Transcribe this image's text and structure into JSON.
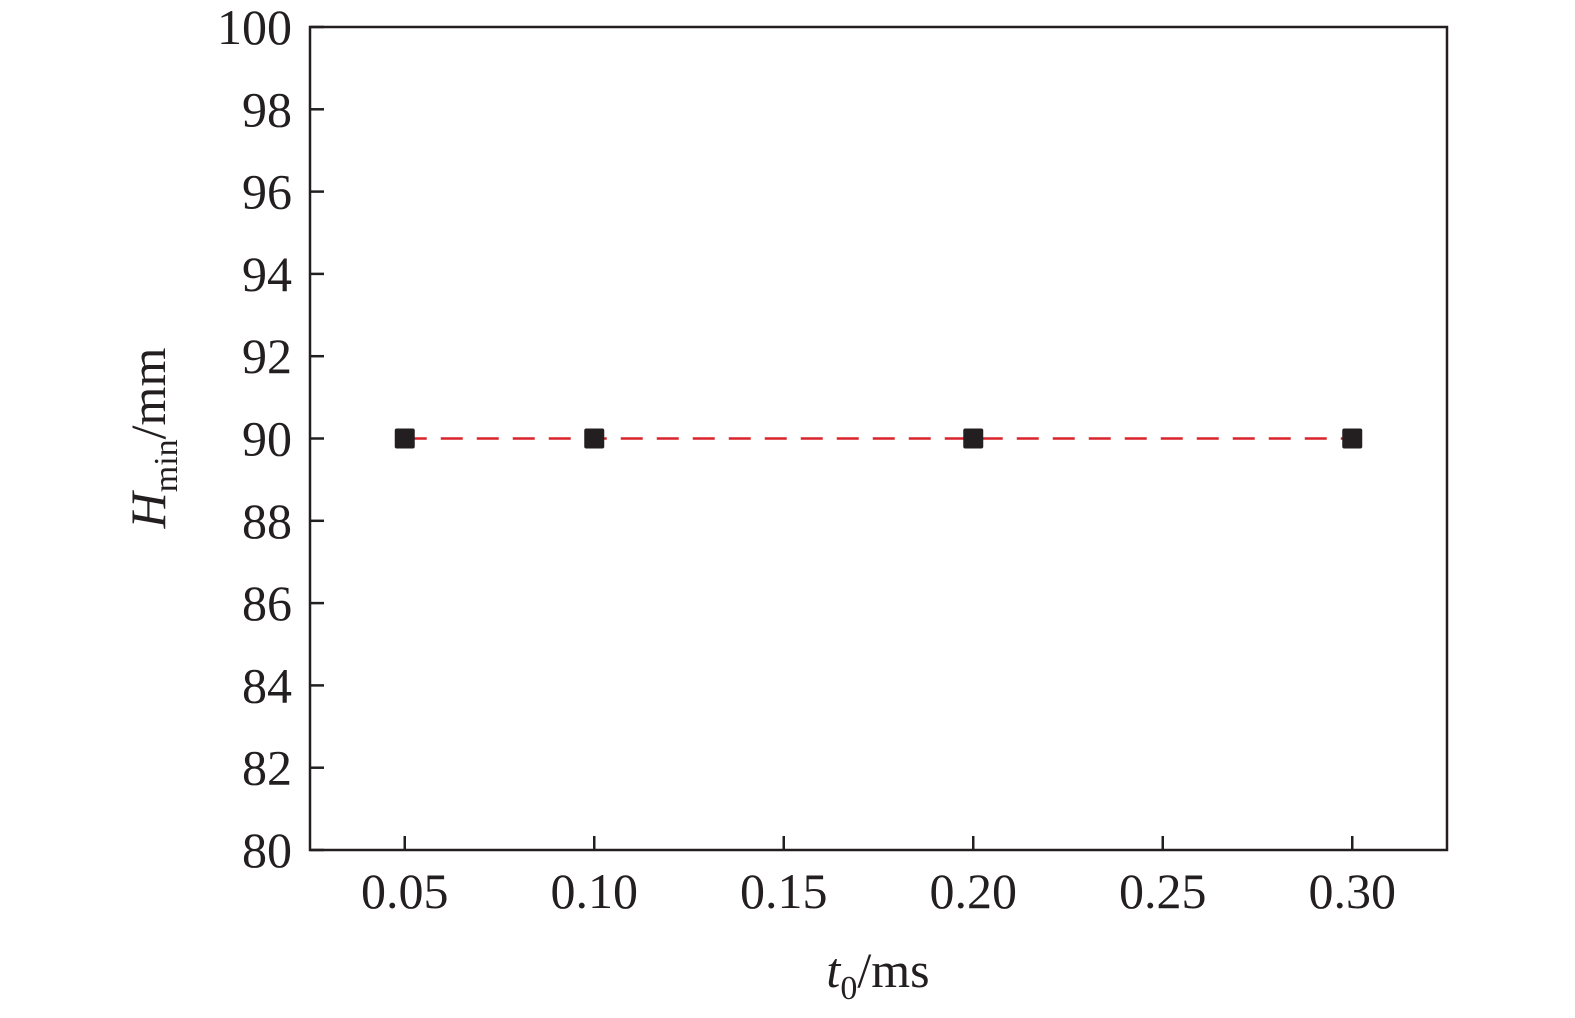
{
  "chart_data": {
    "type": "line",
    "title": "",
    "xlabel": {
      "symbol": "t",
      "subscript": "0",
      "unit": "/ms"
    },
    "ylabel": {
      "symbol": "H",
      "subscript": "min",
      "unit": "/mm"
    },
    "xlim": [
      0.025,
      0.325
    ],
    "ylim": [
      80,
      100
    ],
    "x_ticks": [
      {
        "value": 0.05,
        "label": "0.05"
      },
      {
        "value": 0.1,
        "label": "0.10"
      },
      {
        "value": 0.15,
        "label": "0.15"
      },
      {
        "value": 0.2,
        "label": "0.20"
      },
      {
        "value": 0.25,
        "label": "0.25"
      },
      {
        "value": 0.3,
        "label": "0.30"
      }
    ],
    "y_ticks": [
      {
        "value": 80,
        "label": "80"
      },
      {
        "value": 82,
        "label": "82"
      },
      {
        "value": 84,
        "label": "84"
      },
      {
        "value": 86,
        "label": "86"
      },
      {
        "value": 88,
        "label": "88"
      },
      {
        "value": 90,
        "label": "90"
      },
      {
        "value": 92,
        "label": "92"
      },
      {
        "value": 94,
        "label": "94"
      },
      {
        "value": 96,
        "label": "96"
      },
      {
        "value": 98,
        "label": "98"
      },
      {
        "value": 100,
        "label": "100"
      }
    ],
    "grid": false,
    "legend": "none",
    "series": [
      {
        "x": [
          0.05,
          0.1,
          0.2,
          0.3
        ],
        "y": [
          90,
          90,
          90,
          90
        ],
        "marker": "square",
        "marker_color": "#231f20",
        "line_style": "dashed",
        "line_color": "#d9242b"
      }
    ]
  }
}
